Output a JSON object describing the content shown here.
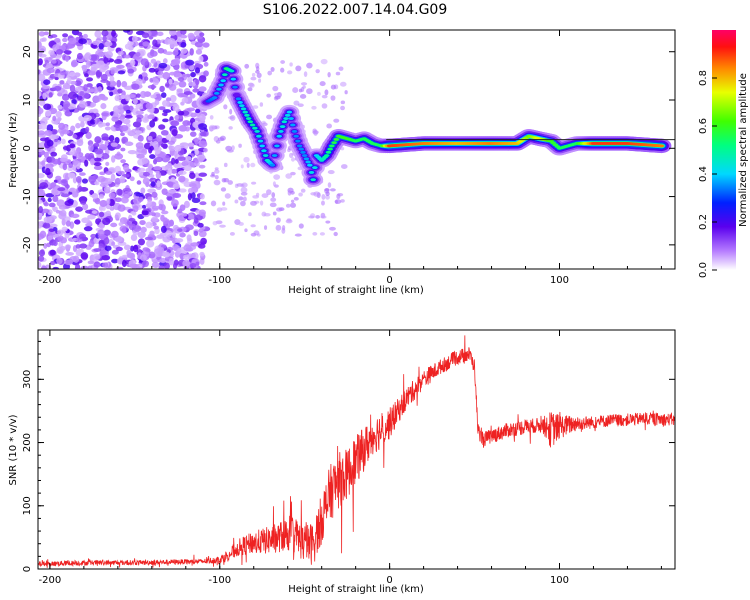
{
  "title": "S106.2022.007.14.04.G09",
  "chart_data": [
    {
      "type": "heatmap",
      "title": "",
      "xlabel": "Height of straight line (km)",
      "ylabel": "Frequency (Hz)",
      "xlim": [
        -207,
        168
      ],
      "ylim": [
        -25,
        24.5
      ],
      "xticks": [
        "-200",
        "-100",
        "0",
        "100"
      ],
      "xtick_values": [
        -200,
        -100,
        0,
        100
      ],
      "yticks": [
        "20",
        "10",
        "0",
        "-10",
        "-20"
      ],
      "ytick_values": [
        20,
        10,
        0,
        -10,
        -20
      ],
      "colorbar": {
        "label": "Normalized spectral amplitude",
        "range": [
          0,
          1
        ],
        "ticks": [
          "0.0",
          "0.2",
          "0.4",
          "0.6",
          "0.8"
        ],
        "tick_values": [
          0,
          0.2,
          0.4,
          0.6,
          0.8
        ]
      },
      "noise_region_x": [
        -207,
        -108
      ],
      "track": [
        [
          -108,
          9.5,
          0.3
        ],
        [
          -103,
          10.5,
          0.35
        ],
        [
          -98,
          14,
          0.4
        ],
        [
          -96,
          16.5,
          0.55
        ],
        [
          -93,
          16,
          0.45
        ],
        [
          -90,
          11,
          0.3
        ],
        [
          -88,
          9.5,
          0.4
        ],
        [
          -85,
          7.5,
          0.45
        ],
        [
          -82,
          5.5,
          0.5
        ],
        [
          -78,
          3.5,
          0.45
        ],
        [
          -75,
          0.5,
          0.4
        ],
        [
          -72,
          -2.5,
          0.45
        ],
        [
          -69,
          -3.5,
          0.35
        ],
        [
          -65,
          2.5,
          0.4
        ],
        [
          -62,
          5.5,
          0.45
        ],
        [
          -59,
          7.5,
          0.4
        ],
        [
          -56,
          3.5,
          0.35
        ],
        [
          -53,
          0.5,
          0.35
        ],
        [
          -50,
          -1.5,
          0.35
        ],
        [
          -47,
          -3.5,
          0.4
        ],
        [
          -45,
          -6.5,
          0.45
        ],
        [
          -43,
          -1.5,
          0.4
        ],
        [
          -40,
          -2.5,
          0.45
        ],
        [
          -37,
          -1.5,
          0.5
        ],
        [
          -34,
          0.5,
          0.55
        ],
        [
          -30,
          2.5,
          0.6
        ],
        [
          -25,
          2,
          0.6
        ],
        [
          -20,
          1.5,
          0.55
        ],
        [
          -15,
          2,
          0.55
        ],
        [
          -10,
          1,
          0.55
        ],
        [
          -5,
          0.5,
          0.55
        ],
        [
          0,
          0.5,
          0.9
        ],
        [
          20,
          1,
          0.85
        ],
        [
          40,
          1,
          0.8
        ],
        [
          60,
          1,
          0.85
        ],
        [
          75,
          1,
          0.8
        ],
        [
          82,
          2.5,
          0.65
        ],
        [
          88,
          2,
          0.75
        ],
        [
          95,
          1.5,
          0.6
        ],
        [
          100,
          0,
          0.55
        ],
        [
          110,
          1,
          0.55
        ],
        [
          120,
          1,
          0.9
        ],
        [
          140,
          1,
          0.9
        ],
        [
          160,
          0.5,
          0.85
        ]
      ]
    },
    {
      "type": "line",
      "title": "",
      "xlabel": "Height of straight line (km)",
      "ylabel": "SNR (10 * v/v)",
      "xlim": [
        -207,
        168
      ],
      "ylim": [
        0,
        378
      ],
      "xticks": [
        "-200",
        "-100",
        "0",
        "100"
      ],
      "xtick_values": [
        -200,
        -100,
        0,
        100
      ],
      "yticks": [
        "0",
        "100",
        "200",
        "300"
      ],
      "ytick_values": [
        0,
        100,
        200,
        300
      ],
      "series": [
        {
          "color": "#ee2222",
          "x": [
            -207,
            -190,
            -170,
            -150,
            -130,
            -110,
            -100,
            -95,
            -88,
            -80,
            -72,
            -65,
            -58,
            -50,
            -45,
            -40,
            -35,
            -30,
            -25,
            -20,
            -15,
            -10,
            -5,
            0,
            5,
            10,
            20,
            30,
            40,
            47,
            50,
            52,
            55,
            60,
            70,
            80,
            90,
            95,
            100,
            110,
            120,
            130,
            140,
            150,
            160,
            168
          ],
          "values": [
            8,
            9,
            10,
            10,
            11,
            12,
            15,
            22,
            35,
            42,
            45,
            50,
            58,
            40,
            40,
            80,
            120,
            140,
            150,
            170,
            190,
            210,
            220,
            230,
            250,
            270,
            300,
            320,
            335,
            340,
            320,
            220,
            205,
            210,
            220,
            225,
            228,
            220,
            225,
            230,
            232,
            235,
            236,
            238,
            237,
            236
          ],
          "noise": [
            4,
            4,
            4,
            4,
            4,
            4,
            6,
            10,
            14,
            18,
            22,
            24,
            30,
            30,
            35,
            40,
            45,
            45,
            40,
            40,
            35,
            30,
            30,
            25,
            20,
            18,
            15,
            12,
            12,
            12,
            12,
            12,
            12,
            12,
            12,
            12,
            12,
            30,
            20,
            12,
            10,
            10,
            10,
            10,
            10,
            10
          ]
        }
      ]
    }
  ]
}
